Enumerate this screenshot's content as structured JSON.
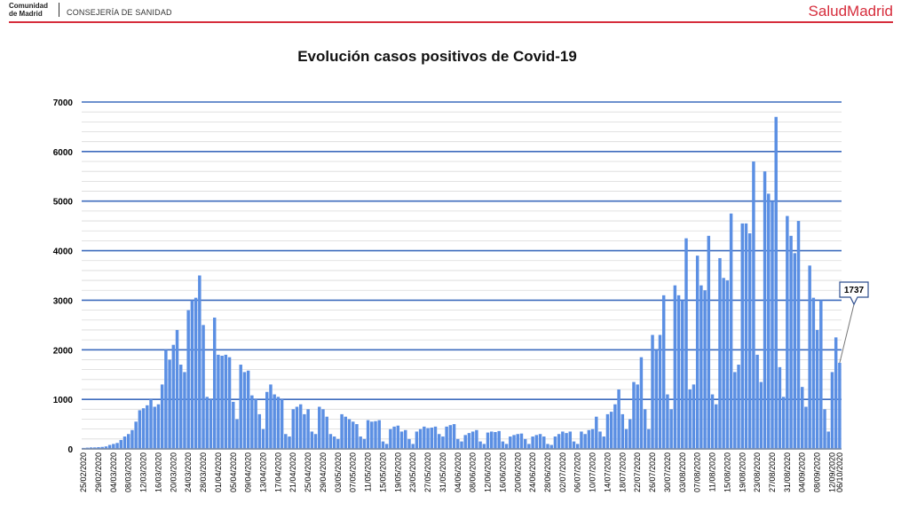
{
  "header": {
    "logo_line1": "Comunidad",
    "logo_line2": "de Madrid",
    "department": "CONSEJERÍA DE SANIDAD",
    "brand": "SaludMadrid",
    "brand_color": "#d62d3c"
  },
  "chart_data": {
    "type": "bar",
    "title": "Evolución casos positivos de Covid-19",
    "xlabel": "",
    "ylabel": "",
    "ylim": [
      0,
      7000
    ],
    "yticks": [
      0,
      1000,
      2000,
      3000,
      4000,
      5000,
      6000,
      7000
    ],
    "grid": true,
    "bar_color": "#5b8fe3",
    "gridline_color": "#3d6bbd",
    "start_date": "25/02/2020",
    "end_date": "06/10/2020",
    "tick_every_days": 4,
    "callout_value": "1737",
    "values": [
      20,
      25,
      30,
      30,
      35,
      40,
      50,
      80,
      100,
      120,
      180,
      250,
      300,
      380,
      550,
      780,
      820,
      880,
      1000,
      850,
      900,
      1300,
      2000,
      1800,
      2100,
      2400,
      1700,
      1550,
      2800,
      3000,
      3050,
      3500,
      2500,
      1050,
      1000,
      2650,
      1900,
      1880,
      1900,
      1850,
      950,
      600,
      1700,
      1550,
      1580,
      1080,
      1000,
      700,
      400,
      1150,
      1300,
      1100,
      1050,
      1000,
      300,
      250,
      800,
      850,
      900,
      700,
      800,
      350,
      300,
      850,
      800,
      650,
      300,
      250,
      200,
      700,
      650,
      600,
      550,
      500,
      250,
      200,
      580,
      550,
      560,
      580,
      150,
      100,
      400,
      450,
      470,
      350,
      380,
      200,
      100,
      350,
      400,
      450,
      420,
      430,
      450,
      300,
      250,
      450,
      480,
      500,
      200,
      150,
      280,
      320,
      350,
      380,
      150,
      100,
      330,
      350,
      340,
      360,
      150,
      100,
      250,
      280,
      300,
      310,
      200,
      100,
      250,
      280,
      300,
      250,
      100,
      80,
      250,
      300,
      350,
      320,
      350,
      150,
      100,
      350,
      300,
      380,
      400,
      650,
      350,
      250,
      700,
      750,
      900,
      1200,
      700,
      400,
      600,
      1350,
      1300,
      1850,
      800,
      400,
      2300,
      2000,
      2300,
      3100,
      1100,
      800,
      3300,
      3100,
      3000,
      4250,
      1200,
      1300,
      3900,
      3300,
      3200,
      4300,
      1100,
      900,
      3850,
      3450,
      3400,
      4750,
      1550,
      1700,
      4550,
      4550,
      4350,
      5800,
      1900,
      1350,
      5600,
      5150,
      5000,
      6700,
      1650,
      1050,
      4700,
      4300,
      3950,
      4600,
      1250,
      850,
      3700,
      3050,
      2400,
      3000,
      800,
      350,
      1550,
      2250,
      1737
    ]
  }
}
